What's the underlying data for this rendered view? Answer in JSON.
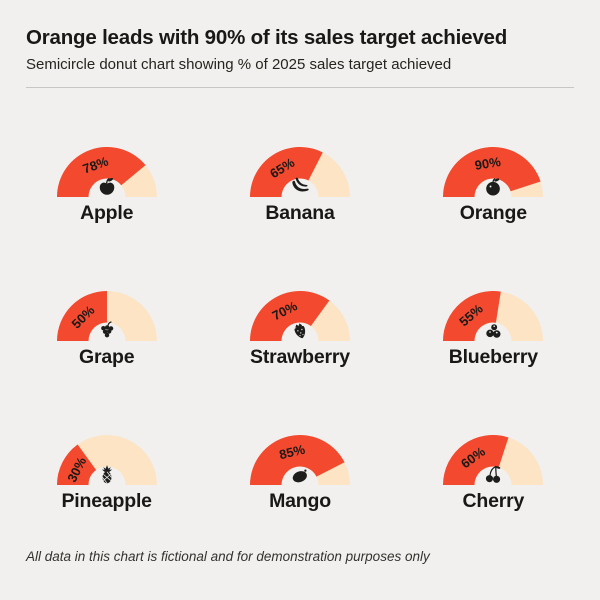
{
  "header": {
    "title": "Orange leads with 90% of its sales target achieved",
    "subtitle": "Semicircle donut chart showing % of 2025 sales target achieved"
  },
  "footer": {
    "note": "All data in this chart is fictional and for demonstration purposes only"
  },
  "colors": {
    "achieved": "#F2492F",
    "remaining": "#FCE4C4",
    "background": "#F1F0EE",
    "ink": "#1D1D1B",
    "divider": "#C7C6C3"
  },
  "chart_data": {
    "type": "semicircle-donut",
    "title": "Orange leads with 90% of its sales target achieved",
    "subtitle": "Semicircle donut chart showing % of 2025 sales target achieved",
    "unit": "%",
    "value_range": [
      0,
      100
    ],
    "layout": {
      "rows": 3,
      "cols": 3,
      "legend": "none",
      "value_label": "on-arc-rotated"
    },
    "colors": {
      "achieved": "#F2492F",
      "remaining": "#FCE4C4"
    },
    "series": [
      {
        "label": "Apple",
        "percent": 78,
        "icon": "apple-icon"
      },
      {
        "label": "Banana",
        "percent": 65,
        "icon": "banana-icon"
      },
      {
        "label": "Orange",
        "percent": 90,
        "icon": "orange-icon"
      },
      {
        "label": "Grape",
        "percent": 50,
        "icon": "grape-icon"
      },
      {
        "label": "Strawberry",
        "percent": 70,
        "icon": "strawberry-icon"
      },
      {
        "label": "Blueberry",
        "percent": 55,
        "icon": "blueberry-icon"
      },
      {
        "label": "Pineapple",
        "percent": 30,
        "icon": "pineapple-icon"
      },
      {
        "label": "Mango",
        "percent": 85,
        "icon": "mango-icon"
      },
      {
        "label": "Cherry",
        "percent": 60,
        "icon": "cherry-icon"
      }
    ]
  }
}
